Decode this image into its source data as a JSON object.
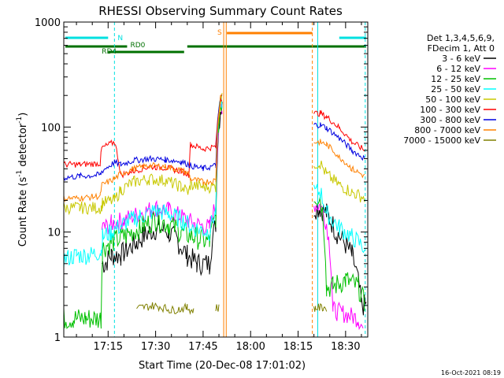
{
  "chart_data": {
    "type": "line",
    "title": "RHESSI Observing Summary Count Rates",
    "xlabel": "Start Time (20-Dec-08 17:01:02)",
    "ylabel": "Count Rate (s",
    "ylabel_sup": "-1",
    "ylabel_tail": " detector",
    "ylabel_sup2": "-1",
    "ylabel_end": ")",
    "x_ticks": [
      "17:15",
      "17:30",
      "17:45",
      "18:00",
      "18:15",
      "18:30"
    ],
    "x_tick_minutes": [
      15,
      30,
      45,
      60,
      75,
      90
    ],
    "y_ticks": [
      "1",
      "10",
      "100",
      "1000"
    ],
    "y_tick_values": [
      1,
      10,
      100,
      1000
    ],
    "xlim_minutes": [
      1,
      97
    ],
    "ylim": [
      1,
      1000
    ],
    "yscale": "log",
    "legend_header": [
      "Det 1,3,4,5,6,9,",
      "FDecim 1, Att 0"
    ],
    "legend_position": "right",
    "footer_date": "16-Oct-2021 08:19",
    "annotations": [
      {
        "label": "N",
        "color": "#00e0e0"
      },
      {
        "label": "RD0",
        "color": "#007000"
      },
      {
        "label": "RD4",
        "color": "#007000"
      },
      {
        "label": "S",
        "color": "#ff8000"
      }
    ],
    "series": [
      {
        "name": "3 - 6 keV",
        "color": "#000000",
        "values": [
          [
            1,
            0
          ],
          [
            4,
            0
          ],
          [
            8,
            0
          ],
          [
            13,
            0
          ],
          [
            14,
            5
          ],
          [
            16,
            6
          ],
          [
            19,
            6
          ],
          [
            24,
            8
          ],
          [
            28,
            10
          ],
          [
            31,
            11
          ],
          [
            34,
            10
          ],
          [
            37,
            8
          ],
          [
            40,
            6
          ],
          [
            43,
            5
          ],
          [
            47,
            5
          ],
          [
            49,
            12
          ],
          [
            50.5,
            150
          ],
          [
            51,
            0
          ],
          [
            57,
            0
          ],
          [
            80,
            0
          ],
          [
            82,
            17
          ],
          [
            84,
            15
          ],
          [
            87,
            10
          ],
          [
            92,
            6
          ],
          [
            95,
            2
          ],
          [
            96.5,
            2
          ]
        ]
      },
      {
        "name": "6 - 12 keV",
        "color": "#ff00ff",
        "values": [
          [
            13,
            0
          ],
          [
            14,
            11
          ],
          [
            16,
            12
          ],
          [
            20,
            13
          ],
          [
            25,
            15
          ],
          [
            30,
            17
          ],
          [
            34,
            16
          ],
          [
            38,
            14
          ],
          [
            42,
            12
          ],
          [
            47,
            11
          ],
          [
            49,
            18
          ],
          [
            50.5,
            160
          ],
          [
            51,
            0
          ],
          [
            80,
            0
          ],
          [
            82,
            18
          ],
          [
            84,
            12
          ],
          [
            86,
            1.8
          ],
          [
            94,
            1.5
          ],
          [
            95.5,
            1.2
          ]
        ]
      },
      {
        "name": "12 - 25 keV",
        "color": "#00c000",
        "values": [
          [
            1,
            0
          ],
          [
            4,
            1.5
          ],
          [
            8,
            1.5
          ],
          [
            12.8,
            1.5
          ],
          [
            13.2,
            7
          ],
          [
            16,
            8
          ],
          [
            20,
            9
          ],
          [
            25,
            11
          ],
          [
            30,
            13
          ],
          [
            34,
            12
          ],
          [
            38,
            10
          ],
          [
            42,
            9
          ],
          [
            47,
            8
          ],
          [
            49,
            14
          ],
          [
            50.5,
            170
          ],
          [
            51,
            0
          ],
          [
            80,
            0
          ],
          [
            82,
            22
          ],
          [
            84,
            3
          ],
          [
            86,
            3
          ],
          [
            90,
            3.5
          ],
          [
            94,
            3
          ],
          [
            96,
            2
          ]
        ]
      },
      {
        "name": "25 - 50 keV",
        "color": "#00ffff",
        "values": [
          [
            1,
            5.5
          ],
          [
            5,
            6
          ],
          [
            9,
            6
          ],
          [
            12.8,
            6.5
          ],
          [
            13.2,
            9
          ],
          [
            16,
            10
          ],
          [
            20,
            12
          ],
          [
            25,
            14
          ],
          [
            30,
            16
          ],
          [
            34,
            15
          ],
          [
            38,
            13
          ],
          [
            42,
            11
          ],
          [
            47,
            10
          ],
          [
            49,
            16
          ],
          [
            50.5,
            180
          ],
          [
            51,
            0
          ],
          [
            80,
            0
          ],
          [
            82,
            24
          ],
          [
            84,
            15
          ],
          [
            88,
            11
          ],
          [
            92,
            9
          ],
          [
            96,
            7
          ]
        ]
      },
      {
        "name": "50 - 100 keV",
        "color": "#c8c800",
        "values": [
          [
            1,
            17
          ],
          [
            6,
            17
          ],
          [
            12.8,
            17
          ],
          [
            13.2,
            19
          ],
          [
            17,
            20
          ],
          [
            19,
            25
          ],
          [
            23,
            30
          ],
          [
            28,
            32
          ],
          [
            33,
            31
          ],
          [
            38,
            27
          ],
          [
            40.5,
            24
          ],
          [
            41,
            28
          ],
          [
            45,
            27
          ],
          [
            49,
            27
          ],
          [
            50.5,
            185
          ],
          [
            51,
            0
          ],
          [
            80,
            0
          ],
          [
            82,
            45
          ],
          [
            84,
            35
          ],
          [
            88,
            28
          ],
          [
            92,
            24
          ],
          [
            96,
            21
          ]
        ]
      },
      {
        "name": "100 - 300 keV",
        "color": "#ff0000",
        "values": [
          [
            1,
            44
          ],
          [
            6,
            44
          ],
          [
            12.5,
            45
          ],
          [
            13,
            63
          ],
          [
            17,
            72
          ],
          [
            19,
            35
          ],
          [
            23,
            38
          ],
          [
            28,
            42
          ],
          [
            33,
            41
          ],
          [
            38,
            38
          ],
          [
            40.5,
            35
          ],
          [
            41,
            68
          ],
          [
            45,
            62
          ],
          [
            49,
            65
          ],
          [
            50.5,
            190
          ],
          [
            51,
            0
          ],
          [
            80,
            0
          ],
          [
            82,
            135
          ],
          [
            84,
            125
          ],
          [
            88,
            98
          ],
          [
            92,
            72
          ],
          [
            96,
            60
          ]
        ]
      },
      {
        "name": "300 - 800 keV",
        "color": "#0000e0",
        "values": [
          [
            1,
            33
          ],
          [
            6,
            34
          ],
          [
            12.5,
            35
          ],
          [
            13,
            38
          ],
          [
            17,
            46
          ],
          [
            19,
            44
          ],
          [
            23,
            48
          ],
          [
            28,
            50
          ],
          [
            33,
            49
          ],
          [
            38,
            47
          ],
          [
            40.5,
            44
          ],
          [
            41,
            43
          ],
          [
            45,
            40
          ],
          [
            49,
            43
          ],
          [
            50.5,
            195
          ],
          [
            51,
            0
          ],
          [
            80,
            0
          ],
          [
            82,
            105
          ],
          [
            84,
            98
          ],
          [
            88,
            78
          ],
          [
            92,
            60
          ],
          [
            96,
            50
          ]
        ]
      },
      {
        "name": "800 - 7000 keV",
        "color": "#ff8000",
        "values": [
          [
            1,
            21
          ],
          [
            6,
            21
          ],
          [
            12.5,
            22
          ],
          [
            13,
            28
          ],
          [
            17,
            32
          ],
          [
            19,
            36
          ],
          [
            23,
            40
          ],
          [
            28,
            43
          ],
          [
            33,
            42
          ],
          [
            38,
            39
          ],
          [
            40.5,
            36
          ],
          [
            41,
            32
          ],
          [
            45,
            30
          ],
          [
            49,
            31
          ],
          [
            50.5,
            200
          ],
          [
            51,
            0
          ],
          [
            80,
            0
          ],
          [
            82,
            72
          ],
          [
            84,
            68
          ],
          [
            88,
            52
          ],
          [
            92,
            40
          ],
          [
            96,
            34
          ]
        ]
      },
      {
        "name": "7000 - 15000 keV",
        "color": "#808000",
        "values": [
          [
            13,
            0
          ],
          [
            24,
            0
          ],
          [
            25,
            1.9
          ],
          [
            30,
            2
          ],
          [
            35,
            1.8
          ],
          [
            40,
            1.9
          ],
          [
            41.5,
            1.8
          ],
          [
            42,
            0
          ],
          [
            49,
            0
          ],
          [
            49.5,
            1.9
          ],
          [
            50,
            0
          ],
          [
            80,
            0
          ],
          [
            80.5,
            1.9
          ],
          [
            83,
            1.9
          ],
          [
            84,
            0
          ]
        ]
      }
    ]
  }
}
